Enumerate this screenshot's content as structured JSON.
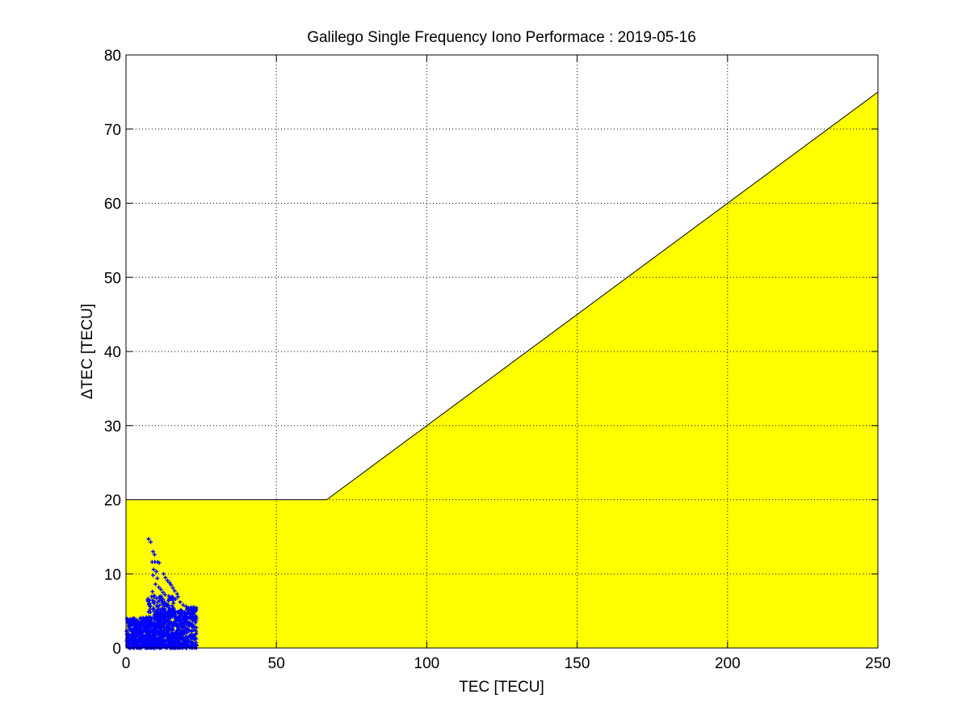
{
  "chart_data": {
    "type": "scatter",
    "title": "Galilego Single Frequency Iono Performace : 2019-05-16",
    "xlabel": "TEC [TECU]",
    "ylabel": "ΔTEC [TECU]",
    "xlim": [
      0,
      250
    ],
    "ylim": [
      0,
      80
    ],
    "x_ticks": [
      0,
      50,
      100,
      150,
      200,
      250
    ],
    "y_ticks": [
      0,
      10,
      20,
      30,
      40,
      50,
      60,
      70,
      80
    ],
    "grid": true,
    "grid_style": "dotted",
    "colors": {
      "threshold_fill": "#ffff00",
      "threshold_edge": "#000000",
      "points": "#0000ff",
      "grid": "#000000"
    },
    "threshold_region": {
      "fill": "yellow",
      "boundary": [
        [
          0,
          20
        ],
        [
          66.7,
          20
        ],
        [
          250,
          75
        ]
      ]
    },
    "series": [
      {
        "marker": "+",
        "points": [
          [
            7.5,
            14.7
          ],
          [
            8.2,
            14.3
          ],
          [
            9.0,
            13.0
          ],
          [
            9.5,
            12.6
          ],
          [
            8.7,
            11.6
          ],
          [
            9.6,
            11.6
          ],
          [
            10.5,
            11.6
          ],
          [
            11.0,
            11.5
          ],
          [
            9.2,
            10.6
          ],
          [
            10.1,
            10.3
          ],
          [
            9.0,
            9.8
          ],
          [
            10.4,
            9.4
          ],
          [
            12.5,
            10.0
          ],
          [
            13.1,
            9.5
          ],
          [
            13.8,
            9.1
          ],
          [
            14.5,
            8.8
          ],
          [
            15.0,
            8.5
          ],
          [
            15.6,
            8.1
          ],
          [
            16.2,
            7.7
          ],
          [
            17.0,
            7.3
          ],
          [
            17.3,
            6.9
          ],
          [
            9.8,
            8.6
          ],
          [
            10.9,
            8.2
          ],
          [
            11.6,
            7.9
          ],
          [
            12.3,
            7.5
          ],
          [
            13.0,
            7.2
          ],
          [
            14.2,
            7.0
          ],
          [
            15.3,
            6.9
          ],
          [
            16.5,
            6.6
          ],
          [
            18.0,
            6.2
          ],
          [
            8.8,
            7.6
          ],
          [
            9.4,
            7.1
          ],
          [
            10.2,
            6.7
          ],
          [
            11.1,
            6.4
          ],
          [
            12.8,
            6.2
          ],
          [
            13.9,
            5.9
          ],
          [
            19.0,
            5.8
          ],
          [
            20.0,
            5.6
          ],
          [
            20.8,
            5.4
          ],
          [
            21.6,
            5.5
          ],
          [
            22.2,
            5.3
          ],
          [
            22.5,
            4.9
          ],
          [
            21.2,
            4.6
          ],
          [
            19.5,
            4.7
          ]
        ],
        "dense_clusters": [
          {
            "x_range": [
              0.2,
              3.5
            ],
            "y_range": [
              0.0,
              4.0
            ],
            "count": 160
          },
          {
            "x_range": [
              3.5,
              10.0
            ],
            "y_range": [
              0.0,
              4.2
            ],
            "count": 360
          },
          {
            "x_range": [
              10.0,
              20.0
            ],
            "y_range": [
              0.0,
              5.2
            ],
            "count": 520
          },
          {
            "x_range": [
              20.0,
              23.5
            ],
            "y_range": [
              0.0,
              5.5
            ],
            "count": 150
          },
          {
            "x_range": [
              7.0,
              16.0
            ],
            "y_range": [
              4.0,
              7.0
            ],
            "count": 120
          }
        ]
      }
    ]
  }
}
